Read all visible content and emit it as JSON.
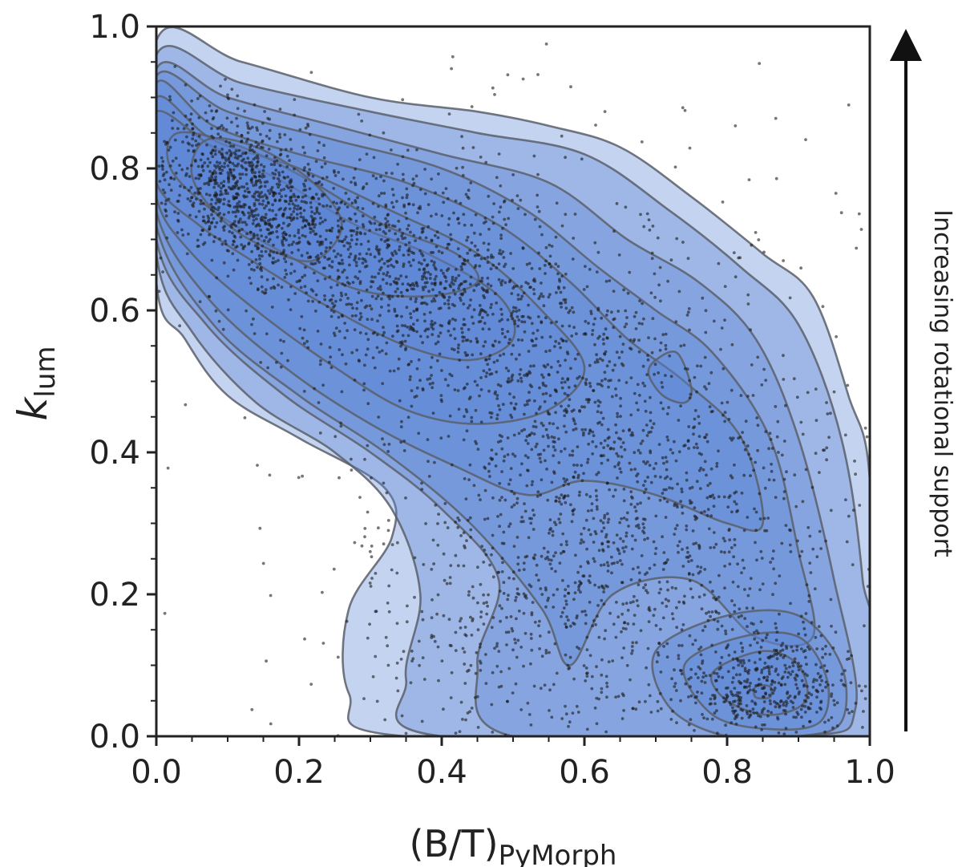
{
  "chart_data": {
    "type": "scatter",
    "title": "",
    "xlabel": {
      "main": "(B/T)",
      "sub": "PyMorph"
    },
    "ylabel": {
      "main": "k",
      "sub": "lum"
    },
    "xlim": [
      0.0,
      1.0
    ],
    "ylim": [
      0.0,
      1.0
    ],
    "xticks": [
      0.0,
      0.2,
      0.4,
      0.6,
      0.8,
      1.0
    ],
    "yticks": [
      0.0,
      0.2,
      0.4,
      0.6,
      0.8,
      1.0
    ],
    "x_tick_labels": [
      "0.0",
      "0.2",
      "0.4",
      "0.6",
      "0.8",
      "1.0"
    ],
    "y_tick_labels": [
      "0.0",
      "0.2",
      "0.4",
      "0.6",
      "0.8",
      "1.0"
    ],
    "grid": false,
    "annotation": {
      "text": "Increasing rotational support",
      "arrow_direction": "up"
    },
    "colors": {
      "fill": "#5b86d6",
      "contour_line": "#5a5f6a",
      "points": "#1a1a1a"
    },
    "density_peaks": [
      {
        "x": 0.12,
        "y": 0.77,
        "level": "highest"
      },
      {
        "x": 0.38,
        "y": 0.66,
        "level": "high"
      },
      {
        "x": 0.72,
        "y": 0.5,
        "level": "local"
      },
      {
        "x": 0.85,
        "y": 0.07,
        "level": "local"
      }
    ],
    "contours": [
      {
        "level": 1,
        "points": [
          [
            0.0,
            0.98
          ],
          [
            0.12,
            0.95
          ],
          [
            0.3,
            0.9
          ],
          [
            0.45,
            0.88
          ],
          [
            0.55,
            0.86
          ],
          [
            0.65,
            0.83
          ],
          [
            0.75,
            0.76
          ],
          [
            0.85,
            0.68
          ],
          [
            0.92,
            0.62
          ],
          [
            0.97,
            0.48
          ],
          [
            1.0,
            0.36
          ],
          [
            1.0,
            0.0
          ],
          [
            0.35,
            0.0
          ],
          [
            0.27,
            0.06
          ],
          [
            0.27,
            0.18
          ],
          [
            0.33,
            0.28
          ],
          [
            0.32,
            0.35
          ],
          [
            0.2,
            0.42
          ],
          [
            0.1,
            0.48
          ],
          [
            0.04,
            0.56
          ],
          [
            0.0,
            0.64
          ]
        ]
      },
      {
        "level": 2,
        "points": [
          [
            0.0,
            0.96
          ],
          [
            0.12,
            0.92
          ],
          [
            0.3,
            0.88
          ],
          [
            0.45,
            0.85
          ],
          [
            0.6,
            0.82
          ],
          [
            0.72,
            0.74
          ],
          [
            0.82,
            0.66
          ],
          [
            0.9,
            0.58
          ],
          [
            0.96,
            0.42
          ],
          [
            0.99,
            0.22
          ],
          [
            1.0,
            0.0
          ],
          [
            0.4,
            0.0
          ],
          [
            0.35,
            0.08
          ],
          [
            0.37,
            0.2
          ],
          [
            0.33,
            0.32
          ],
          [
            0.25,
            0.4
          ],
          [
            0.14,
            0.47
          ],
          [
            0.05,
            0.57
          ],
          [
            0.0,
            0.68
          ]
        ]
      },
      {
        "level": 3,
        "points": [
          [
            0.0,
            0.94
          ],
          [
            0.1,
            0.9
          ],
          [
            0.25,
            0.86
          ],
          [
            0.4,
            0.82
          ],
          [
            0.55,
            0.78
          ],
          [
            0.66,
            0.7
          ],
          [
            0.76,
            0.64
          ],
          [
            0.84,
            0.56
          ],
          [
            0.9,
            0.42
          ],
          [
            0.95,
            0.22
          ],
          [
            0.98,
            0.04
          ],
          [
            0.9,
            0.0
          ],
          [
            0.5,
            0.0
          ],
          [
            0.45,
            0.1
          ],
          [
            0.48,
            0.22
          ],
          [
            0.4,
            0.32
          ],
          [
            0.3,
            0.4
          ],
          [
            0.18,
            0.48
          ],
          [
            0.07,
            0.58
          ],
          [
            0.0,
            0.7
          ]
        ]
      },
      {
        "level": 4,
        "points": [
          [
            0.0,
            0.93
          ],
          [
            0.1,
            0.88
          ],
          [
            0.25,
            0.84
          ],
          [
            0.4,
            0.8
          ],
          [
            0.52,
            0.74
          ],
          [
            0.62,
            0.66
          ],
          [
            0.7,
            0.6
          ],
          [
            0.78,
            0.54
          ],
          [
            0.86,
            0.42
          ],
          [
            0.9,
            0.26
          ],
          [
            0.92,
            0.14
          ],
          [
            0.84,
            0.14
          ],
          [
            0.75,
            0.22
          ],
          [
            0.64,
            0.2
          ],
          [
            0.58,
            0.1
          ],
          [
            0.54,
            0.18
          ],
          [
            0.44,
            0.3
          ],
          [
            0.32,
            0.4
          ],
          [
            0.2,
            0.48
          ],
          [
            0.08,
            0.58
          ],
          [
            0.0,
            0.72
          ]
        ]
      },
      {
        "level": 5,
        "points": [
          [
            0.0,
            0.92
          ],
          [
            0.08,
            0.86
          ],
          [
            0.2,
            0.82
          ],
          [
            0.35,
            0.78
          ],
          [
            0.48,
            0.72
          ],
          [
            0.58,
            0.64
          ],
          [
            0.66,
            0.56
          ],
          [
            0.74,
            0.5
          ],
          [
            0.82,
            0.42
          ],
          [
            0.85,
            0.3
          ],
          [
            0.8,
            0.3
          ],
          [
            0.7,
            0.34
          ],
          [
            0.6,
            0.36
          ],
          [
            0.52,
            0.34
          ],
          [
            0.42,
            0.38
          ],
          [
            0.3,
            0.44
          ],
          [
            0.18,
            0.52
          ],
          [
            0.07,
            0.62
          ],
          [
            0.0,
            0.74
          ]
        ]
      },
      {
        "level": 6,
        "points": [
          [
            0.0,
            0.9
          ],
          [
            0.08,
            0.84
          ],
          [
            0.2,
            0.8
          ],
          [
            0.33,
            0.74
          ],
          [
            0.45,
            0.68
          ],
          [
            0.54,
            0.6
          ],
          [
            0.6,
            0.52
          ],
          [
            0.55,
            0.46
          ],
          [
            0.45,
            0.44
          ],
          [
            0.35,
            0.46
          ],
          [
            0.25,
            0.52
          ],
          [
            0.14,
            0.6
          ],
          [
            0.05,
            0.68
          ],
          [
            0.0,
            0.76
          ]
        ]
      },
      {
        "level": 7,
        "points": [
          [
            0.0,
            0.88
          ],
          [
            0.08,
            0.83
          ],
          [
            0.18,
            0.78
          ],
          [
            0.28,
            0.72
          ],
          [
            0.38,
            0.68
          ],
          [
            0.48,
            0.62
          ],
          [
            0.5,
            0.56
          ],
          [
            0.44,
            0.53
          ],
          [
            0.35,
            0.55
          ],
          [
            0.25,
            0.6
          ],
          [
            0.15,
            0.66
          ],
          [
            0.06,
            0.72
          ],
          [
            0.0,
            0.78
          ]
        ]
      },
      {
        "level": 8,
        "points": [
          [
            0.03,
            0.85
          ],
          [
            0.12,
            0.83
          ],
          [
            0.22,
            0.78
          ],
          [
            0.32,
            0.72
          ],
          [
            0.42,
            0.68
          ],
          [
            0.45,
            0.64
          ],
          [
            0.38,
            0.62
          ],
          [
            0.28,
            0.63
          ],
          [
            0.18,
            0.68
          ],
          [
            0.08,
            0.74
          ],
          [
            0.02,
            0.8
          ]
        ]
      },
      {
        "level": 9,
        "points": [
          [
            0.07,
            0.84
          ],
          [
            0.14,
            0.83
          ],
          [
            0.22,
            0.78
          ],
          [
            0.26,
            0.72
          ],
          [
            0.22,
            0.67
          ],
          [
            0.15,
            0.69
          ],
          [
            0.09,
            0.73
          ],
          [
            0.05,
            0.79
          ]
        ]
      },
      {
        "level": 5,
        "points": [
          [
            0.7,
            0.53
          ],
          [
            0.73,
            0.54
          ],
          [
            0.75,
            0.49
          ],
          [
            0.74,
            0.47
          ],
          [
            0.71,
            0.48
          ],
          [
            0.69,
            0.51
          ]
        ]
      },
      {
        "level": 5,
        "points": [
          [
            0.7,
            0.12
          ],
          [
            0.8,
            0.17
          ],
          [
            0.9,
            0.17
          ],
          [
            0.96,
            0.1
          ],
          [
            0.96,
            0.02
          ],
          [
            0.9,
            0.0
          ],
          [
            0.8,
            0.0
          ],
          [
            0.72,
            0.04
          ]
        ]
      },
      {
        "level": 6,
        "points": [
          [
            0.74,
            0.1
          ],
          [
            0.82,
            0.14
          ],
          [
            0.9,
            0.14
          ],
          [
            0.94,
            0.08
          ],
          [
            0.93,
            0.02
          ],
          [
            0.86,
            0.01
          ],
          [
            0.78,
            0.03
          ]
        ]
      },
      {
        "level": 7,
        "points": [
          [
            0.78,
            0.09
          ],
          [
            0.85,
            0.12
          ],
          [
            0.9,
            0.1
          ],
          [
            0.91,
            0.05
          ],
          [
            0.86,
            0.03
          ],
          [
            0.8,
            0.05
          ]
        ]
      },
      {
        "level": 9,
        "points": [
          [
            0.84,
            0.07
          ],
          [
            0.86,
            0.07
          ],
          [
            0.86,
            0.055
          ],
          [
            0.84,
            0.055
          ]
        ]
      }
    ]
  }
}
